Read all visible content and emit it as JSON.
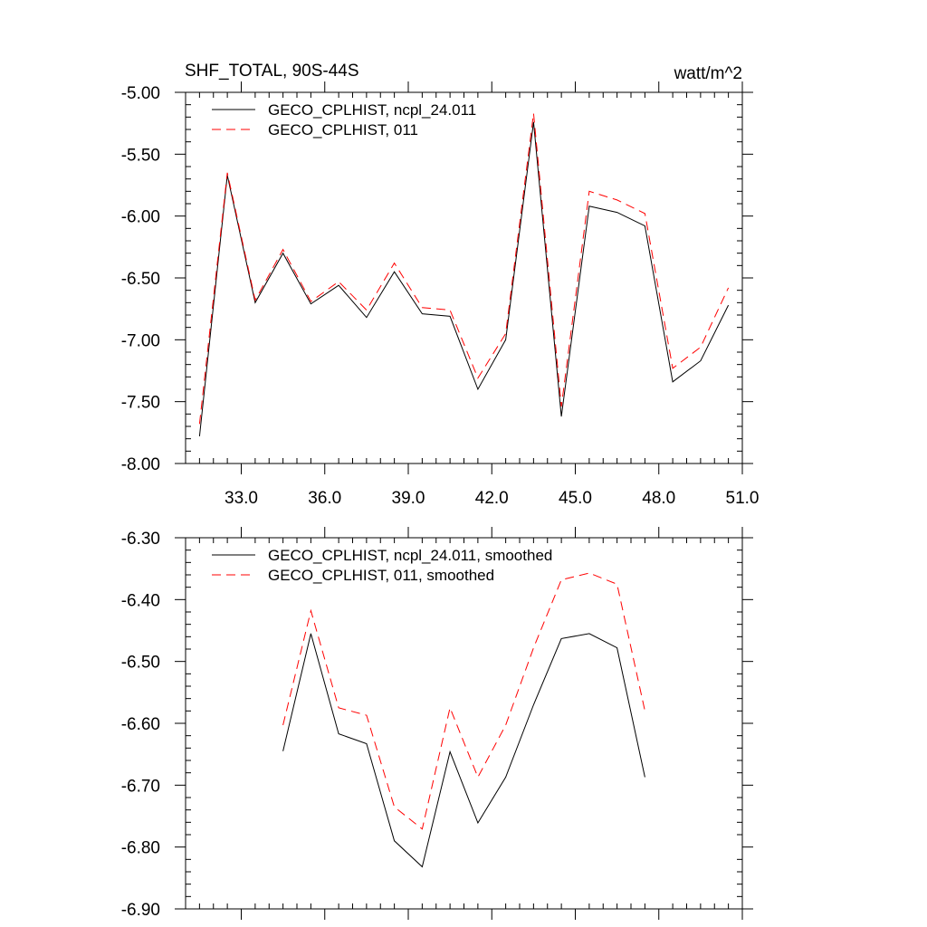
{
  "chart_data": [
    {
      "type": "line",
      "title": "SHF_TOTAL, 90S-44S",
      "units": "watt/m^2",
      "xlim": [
        31,
        51
      ],
      "ylim": [
        -8.0,
        -5.0
      ],
      "xticks": [
        33,
        36,
        39,
        42,
        45,
        48,
        51
      ],
      "xtick_labels": [
        "33.0",
        "36.0",
        "39.0",
        "42.0",
        "45.0",
        "48.0",
        "51.0"
      ],
      "yticks": [
        -8.0,
        -7.5,
        -7.0,
        -6.5,
        -6.0,
        -5.5,
        -5.0
      ],
      "ytick_labels": [
        "-8.00",
        "-7.50",
        "-7.00",
        "-6.50",
        "-6.00",
        "-5.50",
        "-5.00"
      ],
      "legend_placement": "top-left",
      "x": [
        31.5,
        32.5,
        33.5,
        34.5,
        35.5,
        36.5,
        37.5,
        38.5,
        39.5,
        40.5,
        41.5,
        42.5,
        43.5,
        44.5,
        45.5,
        46.5,
        47.5,
        48.5,
        49.5,
        50.5
      ],
      "series": [
        {
          "name": "GECO_CPLHIST, ncpl_24.011",
          "color": "#000000",
          "dash": "solid",
          "values": [
            -7.78,
            -5.67,
            -6.7,
            -6.3,
            -6.71,
            -6.56,
            -6.82,
            -6.45,
            -6.79,
            -6.81,
            -7.4,
            -7.0,
            -5.24,
            -7.62,
            -5.92,
            -5.97,
            -6.08,
            -7.34,
            -7.17,
            -6.72
          ]
        },
        {
          "name": "GECO_CPLHIST, 011",
          "color": "#ff0000",
          "dash": "dashed",
          "values": [
            -7.68,
            -5.65,
            -6.68,
            -6.27,
            -6.69,
            -6.53,
            -6.76,
            -6.38,
            -6.74,
            -6.76,
            -7.31,
            -6.95,
            -5.17,
            -7.54,
            -5.8,
            -5.87,
            -5.98,
            -7.23,
            -7.06,
            -6.58
          ]
        }
      ]
    },
    {
      "type": "line",
      "xlim": [
        31,
        51
      ],
      "ylim": [
        -6.9,
        -6.3
      ],
      "xticks": [
        33,
        36,
        39,
        42,
        45,
        48,
        51
      ],
      "yticks": [
        -6.9,
        -6.8,
        -6.7,
        -6.6,
        -6.5,
        -6.4,
        -6.3
      ],
      "ytick_labels": [
        "-6.90",
        "-6.80",
        "-6.70",
        "-6.60",
        "-6.50",
        "-6.40",
        "-6.30"
      ],
      "legend_placement": "top-left",
      "x": [
        34.5,
        35.5,
        36.5,
        37.5,
        38.5,
        39.5,
        40.5,
        41.5,
        42.5,
        43.5,
        44.5,
        45.5,
        46.5,
        47.5
      ],
      "series": [
        {
          "name": "GECO_CPLHIST, ncpl_24.011, smoothed",
          "color": "#000000",
          "dash": "solid",
          "values": [
            -6.645,
            -6.455,
            -6.617,
            -6.633,
            -6.79,
            -6.832,
            -6.646,
            -6.761,
            -6.687,
            -6.57,
            -6.463,
            -6.455,
            -6.478,
            -6.687
          ]
        },
        {
          "name": "GECO_CPLHIST, 011, smoothed",
          "color": "#ff0000",
          "dash": "dashed",
          "values": [
            -6.603,
            -6.418,
            -6.575,
            -6.587,
            -6.735,
            -6.771,
            -6.575,
            -6.687,
            -6.603,
            -6.478,
            -6.368,
            -6.357,
            -6.375,
            -6.58
          ]
        }
      ]
    }
  ]
}
